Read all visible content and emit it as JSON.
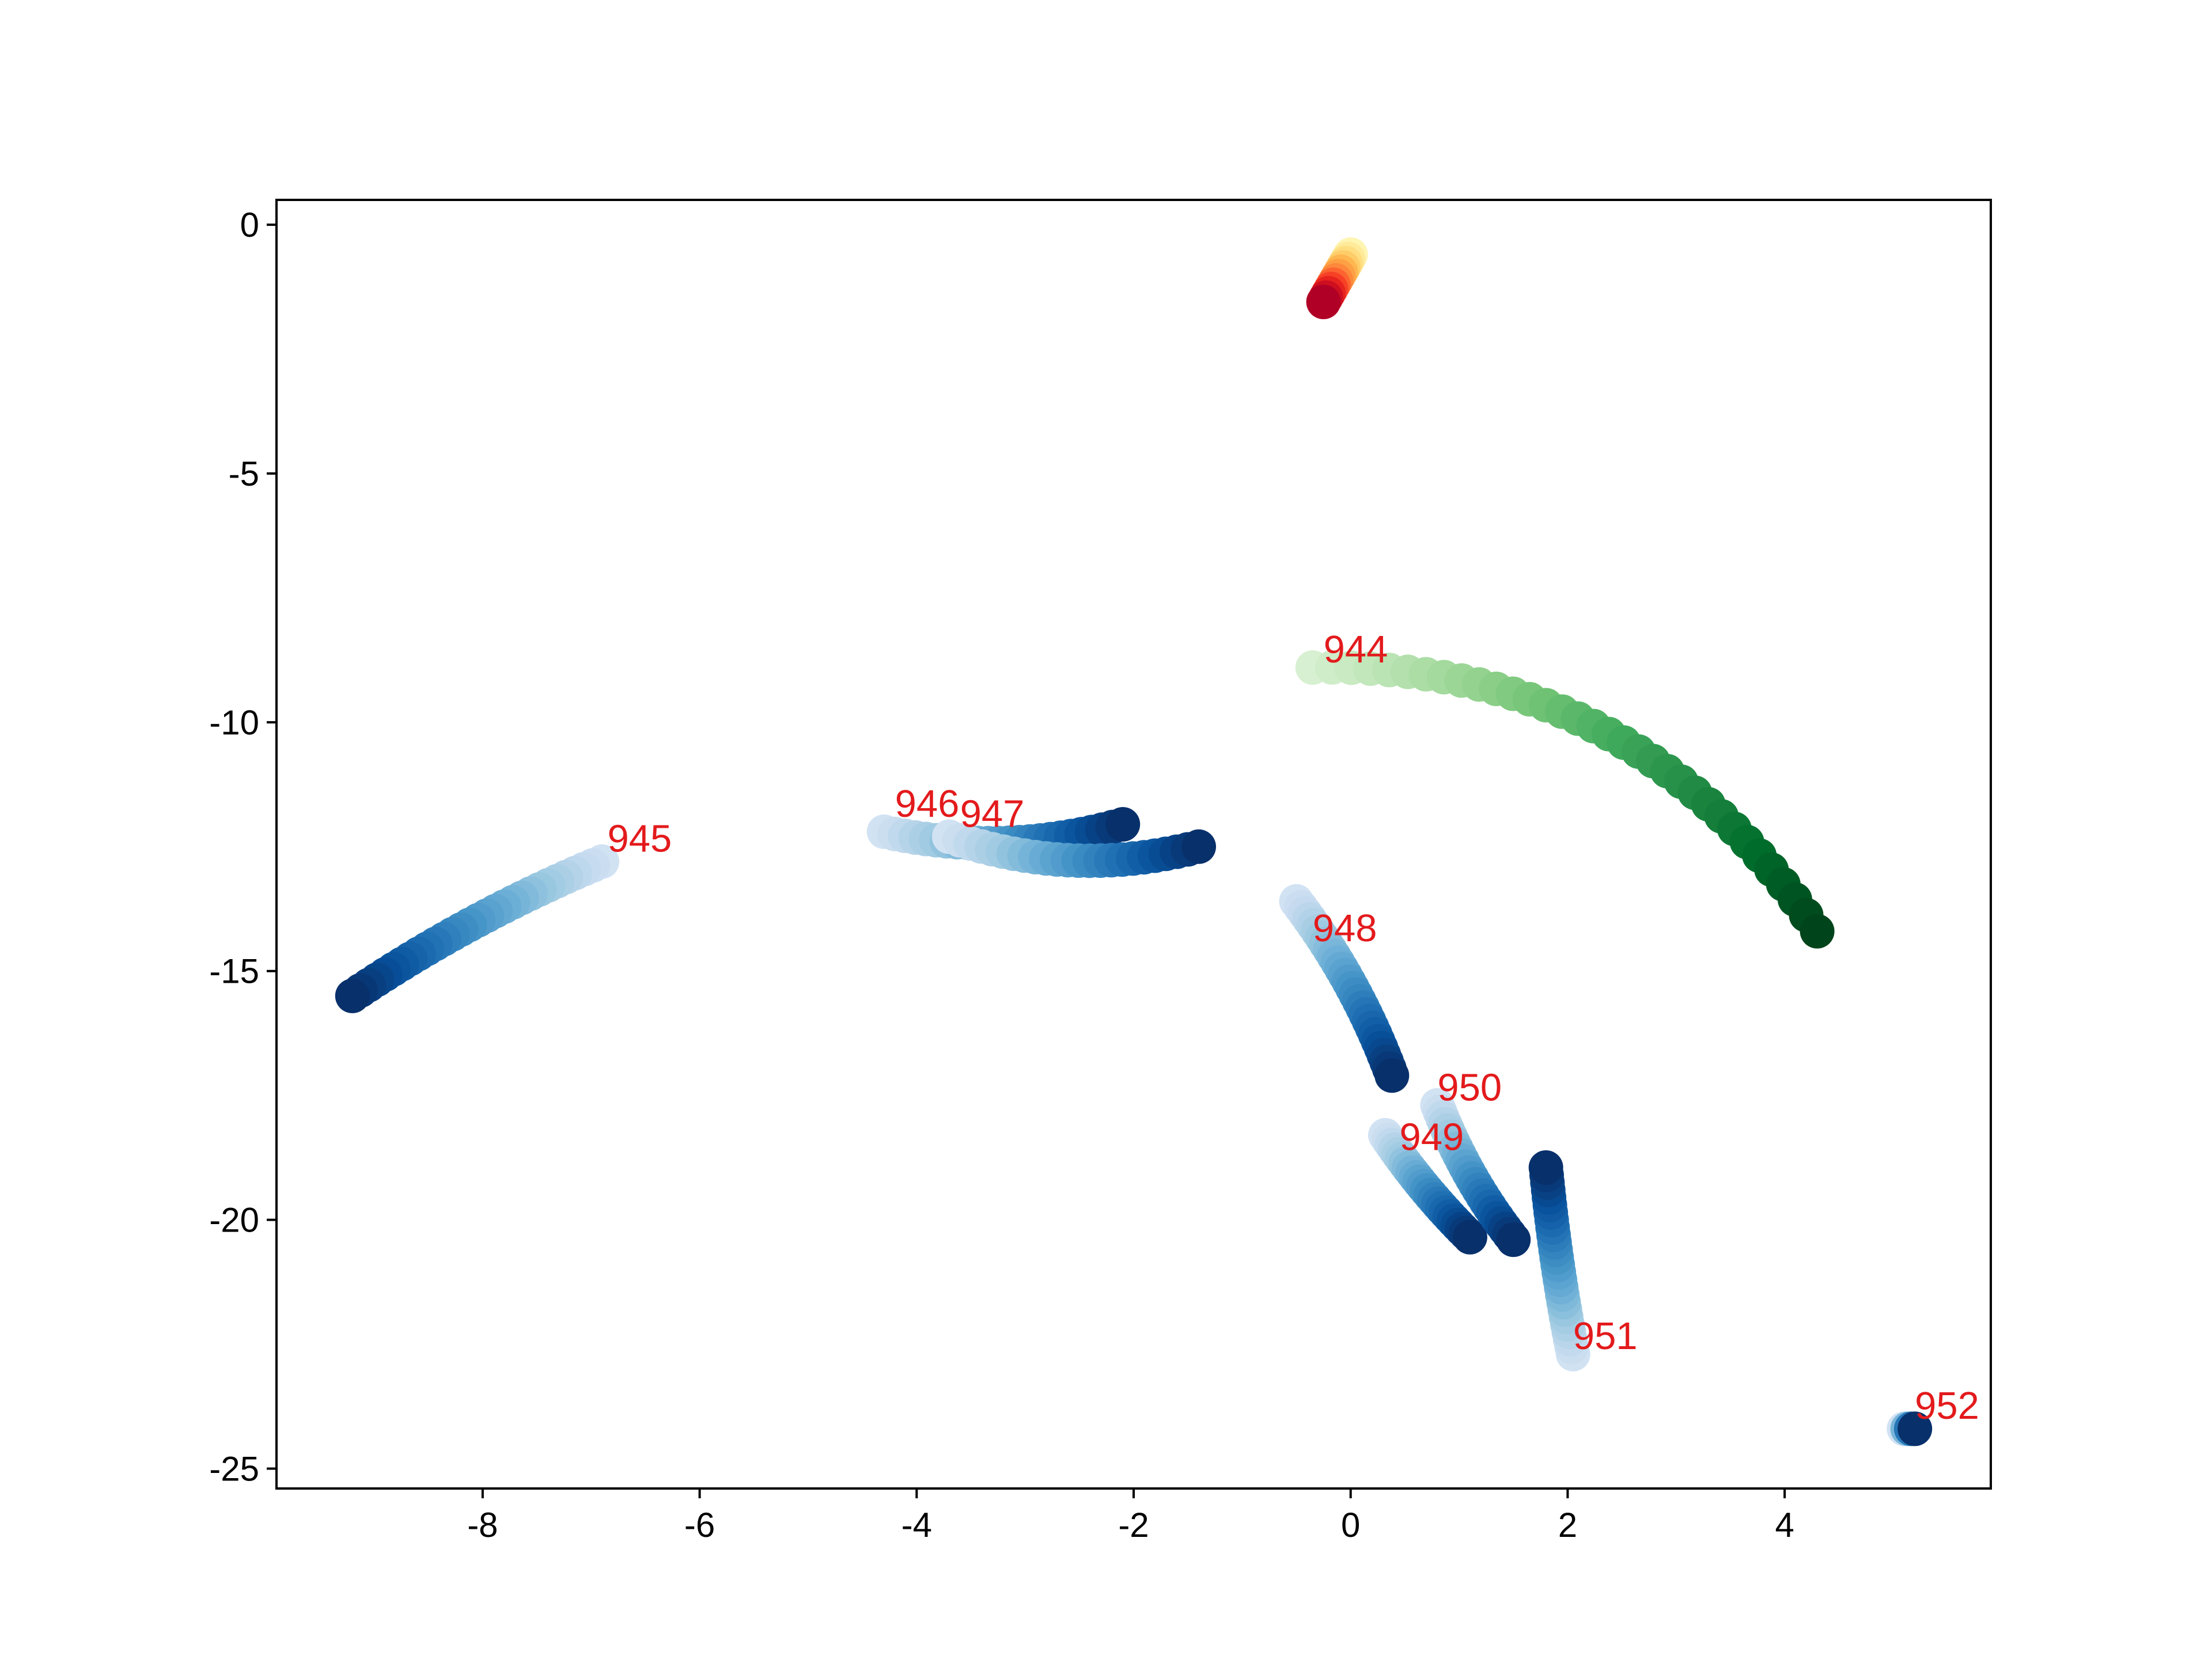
{
  "chart_data": {
    "type": "scatter",
    "title": "",
    "xlabel": "",
    "ylabel": "",
    "xlim": [
      -9.9,
      5.9
    ],
    "ylim": [
      -25.4,
      0.5
    ],
    "grid": false,
    "legend": "none",
    "x_ticks": [
      -8,
      -6,
      -4,
      -2,
      0,
      2,
      4
    ],
    "x_tick_labels": [
      "-8",
      "-6",
      "-4",
      "-2",
      "0",
      "2",
      "4"
    ],
    "y_ticks": [
      0,
      -5,
      -10,
      -15,
      -20,
      -25
    ],
    "y_tick_labels": [
      "0",
      "-5",
      "-10",
      "-15",
      "-20",
      "-25"
    ],
    "label_color": "#e31a1c",
    "tracks": [
      {
        "label": "",
        "colormap": "YlOrRd",
        "start": [
          0.0,
          -0.6
        ],
        "end": [
          -0.25,
          -1.55
        ],
        "curve": 0.0,
        "n": 12
      },
      {
        "label": "944",
        "label_at": [
          -0.25,
          -8.8
        ],
        "colormap": "Greens",
        "start": [
          -0.35,
          -8.9
        ],
        "end": [
          4.3,
          -14.2
        ],
        "curve": -0.55,
        "n": 34
      },
      {
        "label": "945",
        "label_at": [
          -6.85,
          -12.6
        ],
        "colormap": "Blues",
        "start": [
          -6.9,
          -12.8
        ],
        "end": [
          -9.2,
          -15.5
        ],
        "curve": 0.1,
        "n": 30
      },
      {
        "label": "946",
        "label_at": [
          -4.2,
          -11.9
        ],
        "colormap": "Blues",
        "start": [
          -4.3,
          -12.2
        ],
        "end": [
          -2.1,
          -12.05
        ],
        "curve": 0.25,
        "n": 24
      },
      {
        "label": "947",
        "label_at": [
          -3.6,
          -12.1
        ],
        "colormap": "Blues",
        "start": [
          -3.7,
          -12.3
        ],
        "end": [
          -1.4,
          -12.5
        ],
        "curve": 0.3,
        "n": 24
      },
      {
        "label": "948",
        "label_at": [
          -0.35,
          -14.4
        ],
        "colormap": "Blues",
        "start": [
          -0.5,
          -13.6
        ],
        "end": [
          0.38,
          -17.1
        ],
        "curve": -0.15,
        "n": 28
      },
      {
        "label": "949",
        "label_at": [
          0.45,
          -18.6
        ],
        "colormap": "Blues",
        "start": [
          0.32,
          -18.3
        ],
        "end": [
          1.1,
          -20.35
        ],
        "curve": 0.1,
        "n": 24
      },
      {
        "label": "950",
        "label_at": [
          0.8,
          -17.6
        ],
        "colormap": "Blues",
        "start": [
          0.8,
          -17.7
        ],
        "end": [
          1.5,
          -20.4
        ],
        "curve": 0.15,
        "n": 24
      },
      {
        "label": "951",
        "label_at": [
          2.05,
          -22.6
        ],
        "colormap": "Blues",
        "start": [
          2.05,
          -22.7
        ],
        "end": [
          1.8,
          -18.95
        ],
        "curve": -0.05,
        "n": 26
      },
      {
        "label": "952",
        "label_at": [
          5.2,
          -24.0
        ],
        "colormap": "Blues",
        "start": [
          5.1,
          -24.2
        ],
        "end": [
          5.2,
          -24.2
        ],
        "curve": 0.0,
        "n": 4
      }
    ]
  }
}
